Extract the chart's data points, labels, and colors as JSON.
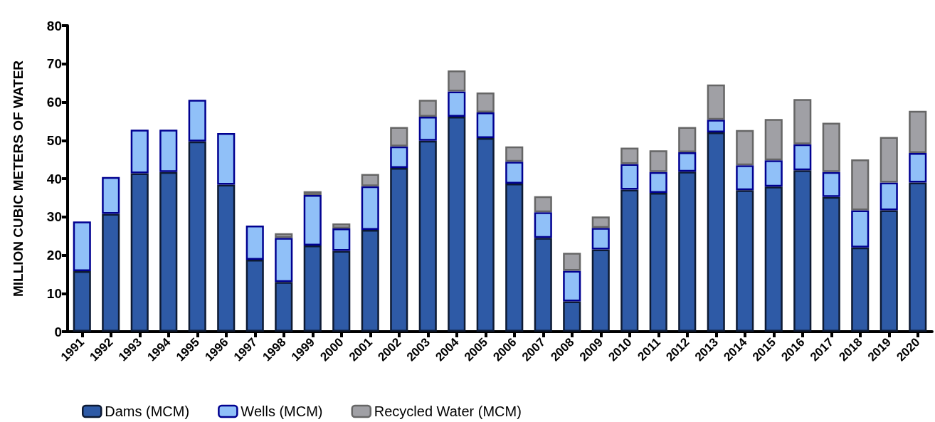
{
  "chart_data": {
    "type": "bar",
    "stacked": true,
    "ylabel": "MILLION CUBIC METERS OF WATER",
    "categories": [
      "1991",
      "1992",
      "1993",
      "1994",
      "1995",
      "1996",
      "1997",
      "1998",
      "1999",
      "2000",
      "2001",
      "2002",
      "2003",
      "2004",
      "2005",
      "2006",
      "2007",
      "2008",
      "2009",
      "2010",
      "2011",
      "2012",
      "2013",
      "2014",
      "2015",
      "2016",
      "2017",
      "2018",
      "2019",
      "2020"
    ],
    "series": [
      {
        "name": "Dams (MCM)",
        "color": "#2e5aa6",
        "values": [
          15.8,
          30.8,
          41.4,
          41.7,
          49.7,
          38.4,
          18.8,
          13.0,
          22.5,
          21.1,
          26.6,
          42.8,
          49.9,
          56.2,
          50.6,
          38.7,
          24.5,
          7.9,
          21.5,
          37.1,
          36.3,
          41.8,
          52.1,
          37.0,
          37.9,
          42.2,
          35.2,
          22.0,
          31.7,
          39.0
        ]
      },
      {
        "name": "Wells (MCM)",
        "color": "#90c0f8",
        "values": [
          13.0,
          9.6,
          11.4,
          11.1,
          10.9,
          13.5,
          8.9,
          11.5,
          13.2,
          5.9,
          11.4,
          5.6,
          6.3,
          6.6,
          6.7,
          5.7,
          6.7,
          8.0,
          5.6,
          6.7,
          5.4,
          5.1,
          3.3,
          6.5,
          6.9,
          6.8,
          6.5,
          9.7,
          7.3,
          7.7
        ]
      },
      {
        "name": "Recycled Water (MCM)",
        "color": "#a0a0a5",
        "values": [
          null,
          null,
          null,
          null,
          null,
          null,
          null,
          1.2,
          1.0,
          1.3,
          3.2,
          5.1,
          4.4,
          5.5,
          5.2,
          4.0,
          4.2,
          4.7,
          3.0,
          4.3,
          5.7,
          6.6,
          9.2,
          9.2,
          10.8,
          11.8,
          12.9,
          13.3,
          11.9,
          11.0
        ]
      }
    ],
    "ylim": [
      0,
      80
    ],
    "yticks": [
      0,
      10,
      20,
      30,
      40,
      50,
      60,
      70,
      80
    ],
    "grid": false,
    "legend": "bottom left"
  }
}
